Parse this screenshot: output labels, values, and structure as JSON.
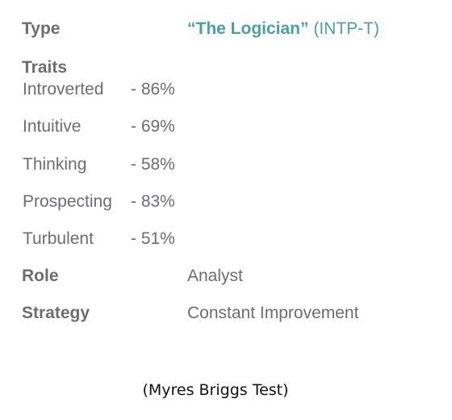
{
  "type": {
    "label": "Type",
    "name": "“The Logician”",
    "code": "(INTP-T)"
  },
  "traits": {
    "label": "Traits",
    "items": [
      {
        "name": "Introverted",
        "percent": "- 86%"
      },
      {
        "name": "Intuitive",
        "percent": "- 69%"
      },
      {
        "name": "Thinking",
        "percent": "- 58%"
      },
      {
        "name": "Prospecting",
        "percent": "- 83%"
      },
      {
        "name": "Turbulent",
        "percent": "- 51%"
      }
    ]
  },
  "role": {
    "label": "Role",
    "value": "Analyst"
  },
  "strategy": {
    "label": "Strategy",
    "value": "Constant Improvement"
  },
  "caption": "(Myres Briggs Test)",
  "colors": {
    "text": "#6b6d71",
    "accent": "#4a9fa3",
    "caption": "#111111"
  }
}
